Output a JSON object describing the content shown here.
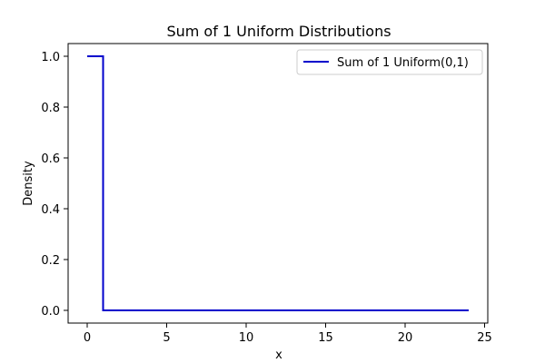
{
  "chart_data": {
    "type": "line",
    "title": "Sum of 1 Uniform Distributions",
    "xlabel": "x",
    "ylabel": "Density",
    "xlim": [
      -1.2,
      25.2
    ],
    "ylim": [
      -0.05,
      1.05
    ],
    "xticks": [
      0,
      5,
      10,
      15,
      20,
      25
    ],
    "yticks": [
      0.0,
      0.2,
      0.4,
      0.6,
      0.8,
      1.0
    ],
    "xtick_labels": [
      "0",
      "5",
      "10",
      "15",
      "20",
      "25"
    ],
    "ytick_labels": [
      "0.0",
      "0.2",
      "0.4",
      "0.6",
      "0.8",
      "1.0"
    ],
    "grid": false,
    "legend_position": "top-right",
    "series": [
      {
        "name": "Sum of 1 Uniform(0,1)",
        "color": "#0000cc",
        "step": true,
        "x": [
          0,
          1,
          1,
          24
        ],
        "y": [
          1.0,
          1.0,
          0.0,
          0.0
        ]
      }
    ]
  }
}
